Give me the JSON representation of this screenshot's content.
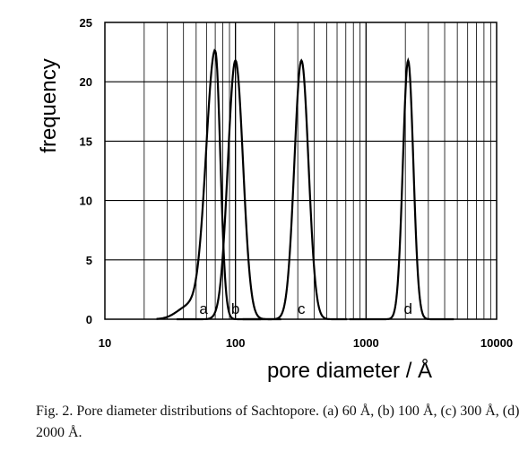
{
  "caption": "Fig. 2. Pore diameter distributions of Sachtopore. (a) 60 Å, (b) 100 Å, (c) 300 Å, (d) 2000 Å.",
  "chart_data": {
    "type": "line",
    "xlabel": "pore diameter / Å",
    "ylabel": "frequency",
    "xscale": "log",
    "xlim": [
      10,
      10000
    ],
    "ylim": [
      0,
      25
    ],
    "x_ticks": [
      "10",
      "100",
      "1000",
      "10000"
    ],
    "y_ticks": [
      "0",
      "5",
      "10",
      "15",
      "20",
      "25"
    ],
    "grid": true,
    "series": [
      {
        "label": "a",
        "peak_x": 70,
        "peak_y": 22.6
      },
      {
        "label": "b",
        "peak_x": 100,
        "peak_y": 21.8
      },
      {
        "label": "c",
        "peak_x": 320,
        "peak_y": 21.8
      },
      {
        "label": "d",
        "peak_x": 2100,
        "peak_y": 21.8
      }
    ]
  }
}
